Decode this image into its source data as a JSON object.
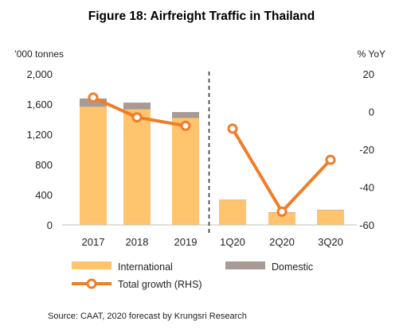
{
  "chart_data": {
    "type": "bar",
    "title": "Figure 18:  Airfreight Traffic in Thailand",
    "ylabel_left": "’000 tonnes",
    "ylabel_right": "% YoY",
    "ylim_left": [
      0,
      2000
    ],
    "yticks_left": [
      "0",
      "400",
      "800",
      "1,200",
      "1,600",
      "2,000"
    ],
    "ylim_right": [
      -60,
      20
    ],
    "yticks_right": [
      "-60",
      "-40",
      "-20",
      "0",
      "20"
    ],
    "categories": [
      "2017",
      "2018",
      "2019",
      "1Q20",
      "2Q20",
      "3Q20"
    ],
    "stacked": true,
    "divider_after_category": "2019",
    "series": [
      {
        "name": "International",
        "values": [
          1565,
          1530,
          1415,
          330,
          165,
          195
        ],
        "color": "#FFC46D",
        "kind": "bar"
      },
      {
        "name": "Domestic",
        "values": [
          110,
          90,
          80,
          5,
          3,
          5
        ],
        "color": "#A89A95",
        "kind": "bar"
      },
      {
        "name": "Total growth (RHS)",
        "segments": [
          {
            "x": [
              "2017",
              "2018",
              "2019"
            ],
            "values": [
              7.5,
              -3,
              -7.5
            ]
          },
          {
            "x": [
              "1Q20",
              "2Q20",
              "3Q20"
            ],
            "values": [
              -9,
              -53,
              -25.5
            ]
          }
        ],
        "color": "#F07D28",
        "kind": "line",
        "axis": "right"
      }
    ],
    "legend": [
      "International",
      "Domestic",
      "Total growth (RHS)"
    ],
    "legend_position": "bottom",
    "grid": false
  },
  "source": "Source:  CAAT, 2020 forecast by Krungsri Research"
}
